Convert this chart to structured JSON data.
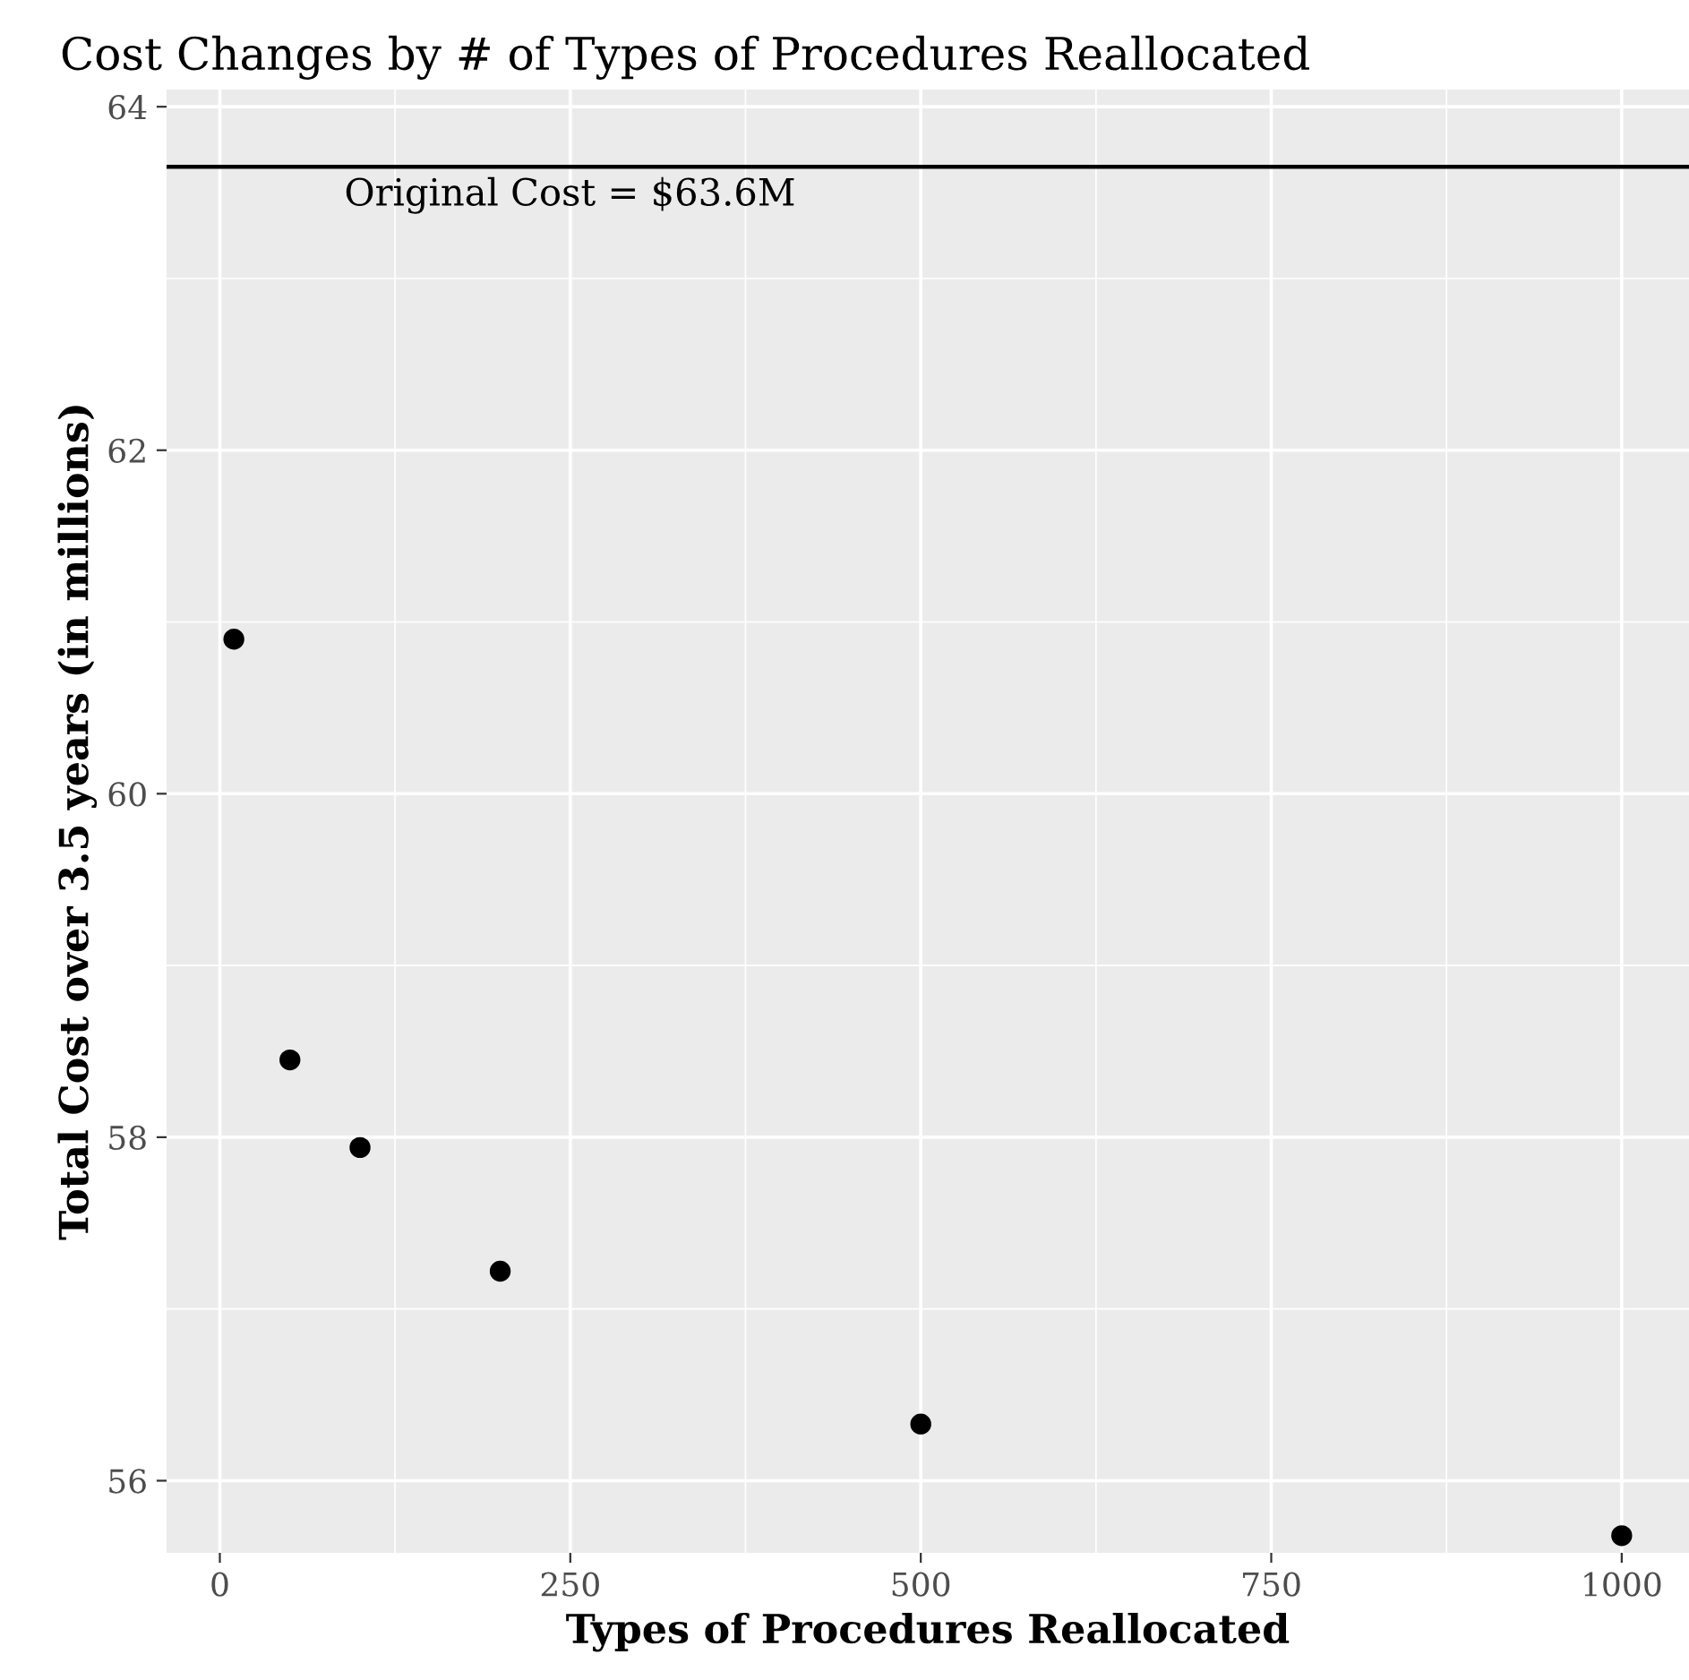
{
  "chart_data": {
    "type": "scatter",
    "title": "Cost Changes by # of Types of Procedures Reallocated",
    "xlabel": "Types of Procedures Reallocated",
    "ylabel": "Total Cost over 3.5 years (in millions)",
    "x": [
      10,
      50,
      100,
      200,
      500,
      1000
    ],
    "values": [
      60.9,
      58.45,
      57.94,
      57.22,
      56.33,
      55.68
    ],
    "color": "#000000",
    "marker": "circle",
    "xlim": [
      -38,
      1048
    ],
    "ylim": [
      55.58,
      64.1
    ],
    "xticks": [
      0,
      250,
      500,
      750,
      1000
    ],
    "yticks": [
      56,
      58,
      60,
      62,
      64
    ],
    "ref_lines": [
      {
        "axis": "y",
        "value": 63.65,
        "label": "Original Cost = $63.6M",
        "color": "#000000"
      }
    ],
    "grid": true
  }
}
